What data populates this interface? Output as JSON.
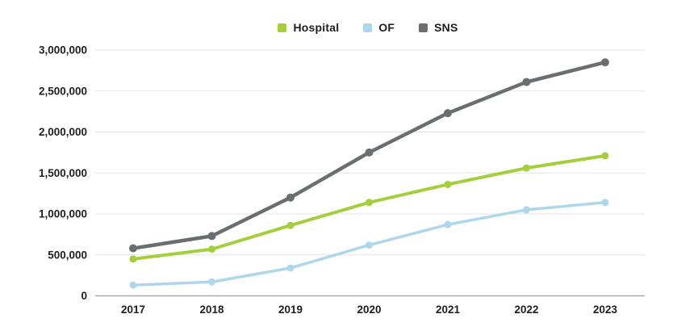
{
  "chart_data": {
    "type": "line",
    "title": "",
    "xlabel": "",
    "ylabel": "",
    "categories": [
      "2017",
      "2018",
      "2019",
      "2020",
      "2021",
      "2022",
      "2023"
    ],
    "series": [
      {
        "name": "Hospital",
        "color": "#a4ce3b",
        "values": [
          450000,
          570000,
          860000,
          1140000,
          1360000,
          1560000,
          1710000
        ]
      },
      {
        "name": "OF",
        "color": "#aed7eb",
        "values": [
          130000,
          170000,
          340000,
          620000,
          870000,
          1050000,
          1140000
        ]
      },
      {
        "name": "SNS",
        "color": "#6b6e70",
        "values": [
          580000,
          730000,
          1200000,
          1750000,
          2230000,
          2610000,
          2850000
        ]
      }
    ],
    "ylim": [
      0,
      3000000
    ],
    "ytick_values": [
      0,
      500000,
      1000000,
      1500000,
      2000000,
      2500000,
      3000000
    ],
    "ytick_labels": [
      "0",
      "500,000",
      "1,000,000",
      "1,500,000",
      "2,000,000",
      "2,500,000",
      "3,000,000"
    ],
    "grid": "horizontal",
    "legend_position": "top-center"
  },
  "colors": {
    "background": "#ffffff",
    "gridline": "#e3e3e3",
    "axis_line": "#a9a9a9",
    "tick_text": "#1e1e1e"
  }
}
